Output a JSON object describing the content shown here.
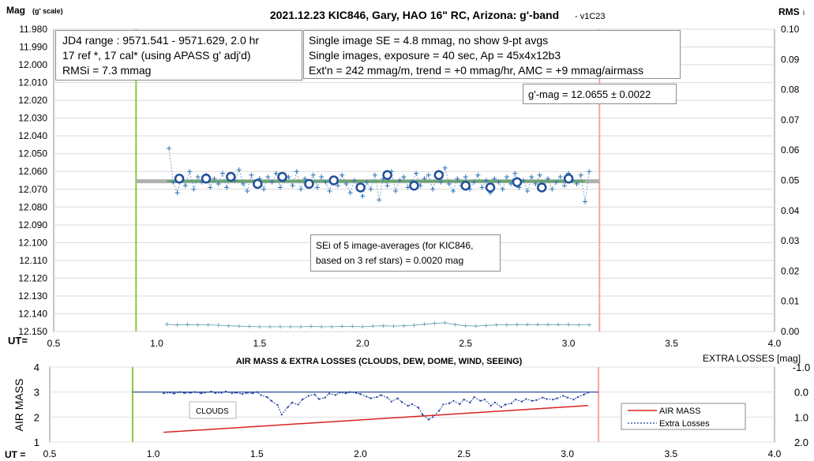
{
  "chart_data": [
    {
      "type": "scatter",
      "title": "2021.12.23 KIC846, Gary, HAO 16\" RC, Arizona: g'-band",
      "title_suffix": "- v1C23",
      "ylabel_left": "Mag",
      "ylabel_left_unit": "(g' scale)",
      "ylabel_right": "RMS",
      "ylabel_right_sub": "i",
      "xlabel": "UT=",
      "xlim": [
        0.5,
        4.0
      ],
      "ylim_left": [
        11.98,
        12.15
      ],
      "ylim_left_inverted": true,
      "ylim_right": [
        0.0,
        0.1
      ],
      "x_ticks": [
        "0.5",
        "1.0",
        "1.5",
        "2.0",
        "2.5",
        "3.0",
        "3.5",
        "4.0"
      ],
      "y_ticks_left": [
        "11.980",
        "11.990",
        "12.000",
        "12.010",
        "12.020",
        "12.030",
        "12.040",
        "12.050",
        "12.060",
        "12.070",
        "12.080",
        "12.090",
        "12.100",
        "12.110",
        "12.120",
        "12.130",
        "12.140",
        "12.150"
      ],
      "y_ticks_right": [
        "0.00",
        "0.01",
        "0.02",
        "0.03",
        "0.04",
        "0.05",
        "0.06",
        "0.07",
        "0.08",
        "0.09",
        "0.10"
      ],
      "vlines": [
        {
          "x": 0.9,
          "color": "#8cc63f"
        },
        {
          "x": 3.15,
          "color": "#f4a6a6"
        }
      ],
      "mean_mag": 12.0655,
      "fit_line": {
        "x": [
          1.05,
          3.08
        ],
        "y": [
          12.0655,
          12.0655
        ],
        "color": "#5aa85a"
      },
      "gray_line": {
        "x": [
          0.9,
          3.15
        ],
        "y": [
          12.0655,
          12.0655
        ],
        "color": "#b0b0b0"
      },
      "series": [
        {
          "name": "Single images",
          "marker": "+",
          "color": "#2e75b6",
          "x": [
            1.06,
            1.08,
            1.1,
            1.12,
            1.14,
            1.16,
            1.18,
            1.2,
            1.22,
            1.24,
            1.26,
            1.28,
            1.3,
            1.32,
            1.34,
            1.36,
            1.38,
            1.4,
            1.42,
            1.44,
            1.46,
            1.48,
            1.5,
            1.52,
            1.54,
            1.56,
            1.58,
            1.6,
            1.62,
            1.64,
            1.66,
            1.68,
            1.7,
            1.72,
            1.74,
            1.76,
            1.78,
            1.8,
            1.82,
            1.84,
            1.86,
            1.88,
            1.9,
            1.92,
            1.94,
            1.96,
            1.98,
            2.0,
            2.02,
            2.04,
            2.06,
            2.08,
            2.1,
            2.12,
            2.14,
            2.16,
            2.18,
            2.2,
            2.22,
            2.24,
            2.26,
            2.28,
            2.3,
            2.32,
            2.34,
            2.36,
            2.38,
            2.4,
            2.42,
            2.44,
            2.46,
            2.48,
            2.5,
            2.52,
            2.54,
            2.56,
            2.58,
            2.6,
            2.62,
            2.64,
            2.66,
            2.68,
            2.7,
            2.72,
            2.74,
            2.76,
            2.78,
            2.8,
            2.82,
            2.84,
            2.86,
            2.88,
            2.9,
            2.92,
            2.94,
            2.96,
            2.98,
            3.0,
            3.02,
            3.04,
            3.06,
            3.08,
            3.1
          ],
          "y": [
            12.047,
            12.066,
            12.072,
            12.064,
            12.068,
            12.06,
            12.07,
            12.063,
            12.066,
            12.062,
            12.069,
            12.064,
            12.067,
            12.061,
            12.069,
            12.063,
            12.065,
            12.059,
            12.067,
            12.071,
            12.062,
            12.068,
            12.064,
            12.07,
            12.063,
            12.066,
            12.061,
            12.069,
            12.065,
            12.063,
            12.068,
            12.06,
            12.07,
            12.064,
            12.067,
            12.062,
            12.069,
            12.063,
            12.066,
            12.071,
            12.064,
            12.068,
            12.062,
            12.067,
            12.072,
            12.065,
            12.069,
            12.074,
            12.066,
            12.07,
            12.062,
            12.076,
            12.064,
            12.068,
            12.06,
            12.071,
            12.065,
            12.063,
            12.069,
            12.066,
            12.061,
            12.068,
            12.064,
            12.062,
            12.07,
            12.063,
            12.066,
            12.058,
            12.067,
            12.071,
            12.064,
            12.068,
            12.063,
            12.07,
            12.066,
            12.062,
            12.069,
            12.065,
            12.072,
            12.064,
            12.066,
            12.07,
            12.063,
            12.067,
            12.061,
            12.069,
            12.065,
            12.071,
            12.063,
            12.067,
            12.062,
            12.068,
            12.064,
            12.07,
            12.066,
            12.063,
            12.068,
            12.061,
            12.065,
            12.067,
            12.062,
            12.077,
            12.06
          ]
        },
        {
          "name": "9-pt avgs",
          "marker": "o",
          "color": "#1f4e9a",
          "x": [
            1.11,
            1.24,
            1.36,
            1.49,
            1.61,
            1.74,
            1.86,
            1.99,
            2.12,
            2.25,
            2.37,
            2.5,
            2.62,
            2.75,
            2.87,
            3.0
          ],
          "y": [
            12.064,
            12.064,
            12.063,
            12.067,
            12.063,
            12.067,
            12.065,
            12.069,
            12.062,
            12.068,
            12.062,
            12.068,
            12.069,
            12.066,
            12.069,
            12.064
          ]
        },
        {
          "name": "RMSi",
          "marker": "+",
          "color": "#5b9bab",
          "axis": "right",
          "x": [
            1.05,
            1.1,
            1.15,
            1.2,
            1.25,
            1.3,
            1.35,
            1.4,
            1.45,
            1.5,
            1.55,
            1.6,
            1.65,
            1.7,
            1.75,
            1.8,
            1.85,
            1.9,
            1.95,
            2.0,
            2.05,
            2.1,
            2.15,
            2.2,
            2.25,
            2.3,
            2.35,
            2.4,
            2.45,
            2.5,
            2.55,
            2.6,
            2.65,
            2.7,
            2.75,
            2.8,
            2.85,
            2.9,
            2.95,
            3.0,
            3.05,
            3.1
          ],
          "y": [
            0.0024,
            0.0022,
            0.0023,
            0.0022,
            0.0022,
            0.0021,
            0.0019,
            0.0018,
            0.0017,
            0.0016,
            0.0016,
            0.0016,
            0.0016,
            0.0016,
            0.0017,
            0.0016,
            0.0016,
            0.0017,
            0.0017,
            0.0016,
            0.0018,
            0.0019,
            0.0018,
            0.0019,
            0.0021,
            0.0024,
            0.0027,
            0.0029,
            0.0023,
            0.0019,
            0.0018,
            0.002,
            0.0022,
            0.0022,
            0.0023,
            0.0023,
            0.0023,
            0.0023,
            0.0023,
            0.0023,
            0.0022,
            0.0022
          ]
        }
      ],
      "annotations": {
        "info_left": [
          "JD4 range : 9571.541 - 9571.629,  2.0  hr",
          "17 ref *, 17 cal* (using APASS g' adj'd)",
          "RMSi = 7.3 mmag"
        ],
        "info_right": [
          "Single image SE = 4.8 mmag, no show  9-pt avgs",
          "Single images, exposure = 40 sec, Ap = 45x4x12b3",
          "Ext'n = 242 mmag/m, trend = +0 mmag/hr, AMC = +9 mmag/airmass"
        ],
        "gmag": "g'-mag = 12.0655 ± 0.0022",
        "sei": [
          "SEi of 5 image-averages (for KIC846,",
          "based on 3 ref stars) = 0.0020 mag"
        ]
      }
    },
    {
      "type": "line",
      "title": "AIR MASS & EXTRA LOSSES (CLOUDS, DEW, DOME, WIND, SEEING)",
      "ylabel_left": "AIR MASS",
      "ylabel_right": "EXTRA LOSSES [mag]",
      "xlabel": "UT =",
      "xlim": [
        0.5,
        4.0
      ],
      "ylim_left": [
        1,
        4
      ],
      "ylim_right": [
        -1.0,
        2.0
      ],
      "ylim_right_inverted": true,
      "x_ticks": [
        "0.5",
        "1.0",
        "1.5",
        "2.0",
        "2.5",
        "3.0",
        "3.5",
        "4.0"
      ],
      "y_ticks_left": [
        "1",
        "2",
        "3",
        "4"
      ],
      "y_ticks_right": [
        "-1.0",
        "0.0",
        "1.0",
        "2.0"
      ],
      "vlines": [
        {
          "x": 0.9,
          "color": "#8cc63f"
        },
        {
          "x": 3.15,
          "color": "#f4a6a6"
        }
      ],
      "ref_line": {
        "y_right": 0.0,
        "x": [
          0.9,
          3.15
        ],
        "color": "#1f3f8f"
      },
      "series": [
        {
          "name": "AIR MASS",
          "color": "#d9231f",
          "axis": "left",
          "x": [
            1.05,
            3.1
          ],
          "y": [
            1.39,
            2.46
          ]
        },
        {
          "name": "Extra Losses",
          "color": "#1f3f9f",
          "axis": "right",
          "style": "dotted-marker",
          "x": [
            1.05,
            1.08,
            1.1,
            1.13,
            1.15,
            1.18,
            1.2,
            1.23,
            1.25,
            1.28,
            1.3,
            1.33,
            1.35,
            1.38,
            1.4,
            1.43,
            1.45,
            1.48,
            1.5,
            1.52,
            1.55,
            1.57,
            1.6,
            1.62,
            1.65,
            1.67,
            1.7,
            1.72,
            1.75,
            1.78,
            1.8,
            1.83,
            1.85,
            1.88,
            1.9,
            1.93,
            1.95,
            1.98,
            2.0,
            2.03,
            2.05,
            2.08,
            2.1,
            2.13,
            2.15,
            2.18,
            2.2,
            2.23,
            2.25,
            2.28,
            2.3,
            2.33,
            2.35,
            2.38,
            2.4,
            2.43,
            2.45,
            2.48,
            2.5,
            2.53,
            2.55,
            2.58,
            2.6,
            2.63,
            2.65,
            2.68,
            2.7,
            2.73,
            2.75,
            2.78,
            2.8,
            2.83,
            2.85,
            2.88,
            2.9,
            2.93,
            2.95,
            2.98,
            3.0,
            3.03,
            3.05,
            3.08,
            3.1
          ],
          "y": [
            0.05,
            0.02,
            0.06,
            0.0,
            0.04,
            0.03,
            0.0,
            0.05,
            0.02,
            -0.02,
            0.04,
            0.03,
            -0.02,
            0.05,
            0.02,
            0.08,
            0.03,
            0.05,
            0.0,
            0.12,
            0.2,
            0.35,
            0.52,
            0.9,
            0.6,
            0.42,
            0.5,
            0.3,
            0.15,
            0.1,
            0.28,
            0.22,
            0.06,
            0.12,
            0.02,
            0.05,
            0.0,
            0.04,
            0.08,
            0.18,
            0.25,
            0.2,
            0.12,
            0.22,
            0.38,
            0.25,
            0.4,
            0.55,
            0.48,
            0.62,
            0.9,
            1.1,
            1.0,
            0.75,
            0.5,
            0.45,
            0.35,
            0.48,
            0.3,
            0.42,
            0.2,
            0.35,
            0.3,
            0.55,
            0.42,
            0.6,
            0.5,
            0.45,
            0.3,
            0.38,
            0.28,
            0.35,
            0.32,
            0.22,
            0.28,
            0.3,
            0.25,
            0.15,
            0.22,
            0.3,
            0.2,
            0.1,
            0.02
          ]
        }
      ],
      "annotations": {
        "clouds_label": "CLOUDS",
        "legend": [
          "AIR MASS",
          "Extra Losses"
        ]
      }
    }
  ]
}
